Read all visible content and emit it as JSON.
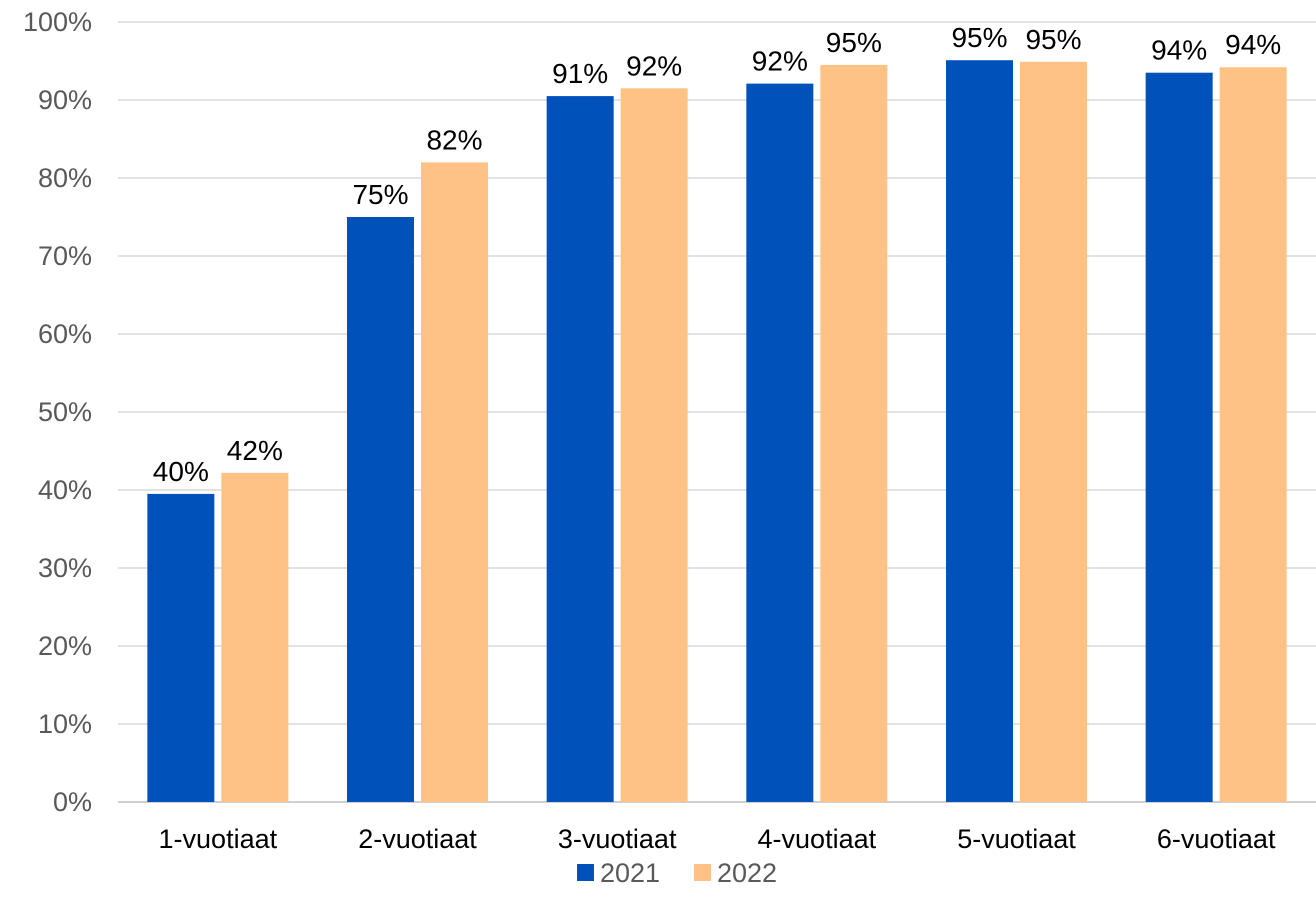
{
  "chart_data": {
    "type": "bar",
    "categories": [
      "1-vuotiaat",
      "2-vuotiaat",
      "3-vuotiaat",
      "4-vuotiaat",
      "5-vuotiaat",
      "6-vuotiaat"
    ],
    "series": [
      {
        "name": "2021",
        "color": "#0051BA",
        "values": [
          0.395,
          0.75,
          0.905,
          0.921,
          0.951,
          0.935
        ],
        "labels": [
          "40%",
          "75%",
          "91%",
          "92%",
          "95%",
          "94%"
        ]
      },
      {
        "name": "2022",
        "color": "#FFC285",
        "values": [
          0.422,
          0.82,
          0.915,
          0.945,
          0.949,
          0.942
        ],
        "labels": [
          "42%",
          "82%",
          "92%",
          "95%",
          "95%",
          "94%"
        ]
      }
    ],
    "ylim": [
      0,
      1
    ],
    "yticks": [
      0,
      0.1,
      0.2,
      0.3,
      0.4,
      0.5,
      0.6,
      0.7,
      0.8,
      0.9,
      1.0
    ],
    "ytick_labels": [
      "0%",
      "10%",
      "20%",
      "30%",
      "40%",
      "50%",
      "60%",
      "70%",
      "80%",
      "90%",
      "100%"
    ],
    "title": "",
    "xlabel": "",
    "ylabel": "",
    "grid": true,
    "legend_position": "bottom"
  }
}
